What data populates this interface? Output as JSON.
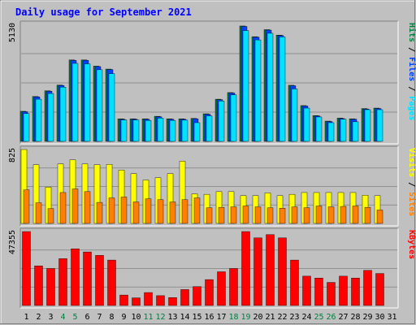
{
  "chart_data": {
    "type": "bar",
    "title": "Daily usage for September 2021",
    "categories": [
      "1",
      "2",
      "3",
      "4",
      "5",
      "6",
      "7",
      "8",
      "9",
      "10",
      "11",
      "12",
      "13",
      "14",
      "15",
      "16",
      "17",
      "18",
      "19",
      "20",
      "21",
      "22",
      "23",
      "24",
      "25",
      "26",
      "27",
      "28",
      "29",
      "30",
      "31"
    ],
    "weekend_days": [
      "4",
      "5",
      "11",
      "12",
      "18",
      "19",
      "25",
      "26"
    ],
    "panels": [
      {
        "id": "hits-files-pages",
        "max_label": "5130",
        "ylim": [
          0,
          5130
        ],
        "right_labels": [
          "Pages",
          "Files",
          "Hits"
        ],
        "series": [
          {
            "name": "Hits",
            "color": "#008040",
            "values": [
              1320,
              1970,
              2220,
              2470,
              3570,
              3570,
              3300,
              3170,
              990,
              990,
              990,
              1100,
              990,
              990,
              1010,
              1210,
              1850,
              2140,
              5060,
              4590,
              4900,
              4660,
              2460,
              1570,
              1130,
              890,
              1020,
              990,
              1440,
              1460,
              0
            ]
          },
          {
            "name": "Files",
            "color": "#0040ff",
            "values": [
              1300,
              1950,
              2200,
              2450,
              3550,
              3550,
              3280,
              3150,
              970,
              970,
              970,
              1080,
              970,
              970,
              990,
              1190,
              1830,
              2120,
              5040,
              4570,
              4880,
              4640,
              2440,
              1550,
              1110,
              870,
              1000,
              970,
              1420,
              1440,
              0
            ]
          },
          {
            "name": "Pages",
            "color": "#00e0ff",
            "values": [
              1220,
              1850,
              2100,
              2380,
              3420,
              3400,
              3140,
              2970,
              940,
              940,
              920,
              1020,
              920,
              930,
              820,
              1120,
              1770,
              2040,
              4860,
              4450,
              4740,
              4580,
              2300,
              1460,
              1070,
              820,
              970,
              860,
              1390,
              1390,
              0
            ]
          }
        ]
      },
      {
        "id": "visits-sites",
        "max_label": "825",
        "ylim": [
          0,
          825
        ],
        "right_labels": [
          "Sites",
          "Visits"
        ],
        "series": [
          {
            "name": "Visits",
            "color": "#ffff00",
            "values": [
              825,
              655,
              405,
              665,
              710,
              665,
              655,
              660,
              595,
              555,
              485,
              510,
              555,
              695,
              330,
              325,
              355,
              355,
              310,
              310,
              340,
              310,
              325,
              345,
              345,
              345,
              345,
              345,
              315,
              310,
              0
            ]
          },
          {
            "name": "Sites",
            "color": "#ff8000",
            "values": [
              375,
              230,
              165,
              345,
              385,
              355,
              235,
              285,
              295,
              240,
              275,
              265,
              240,
              265,
              285,
              175,
              180,
              185,
              195,
              185,
              175,
              170,
              185,
              175,
              195,
              185,
              190,
              195,
              180,
              150,
              0
            ]
          }
        ]
      },
      {
        "id": "kbytes",
        "max_label": "47355",
        "ylim": [
          0,
          47355
        ],
        "right_labels": [
          "KBytes"
        ],
        "series": [
          {
            "name": "KBytes",
            "color": "#ff0000",
            "values": [
              47355,
              25400,
              23700,
              30000,
              36300,
              34300,
              32100,
              29100,
              6700,
              4900,
              8300,
              6300,
              5100,
              10200,
              12100,
              16600,
              21600,
              23700,
              47355,
              43300,
              45400,
              43300,
              29100,
              18800,
              17600,
              14800,
              18800,
              17600,
              22500,
              20500,
              0
            ]
          }
        ]
      }
    ]
  }
}
